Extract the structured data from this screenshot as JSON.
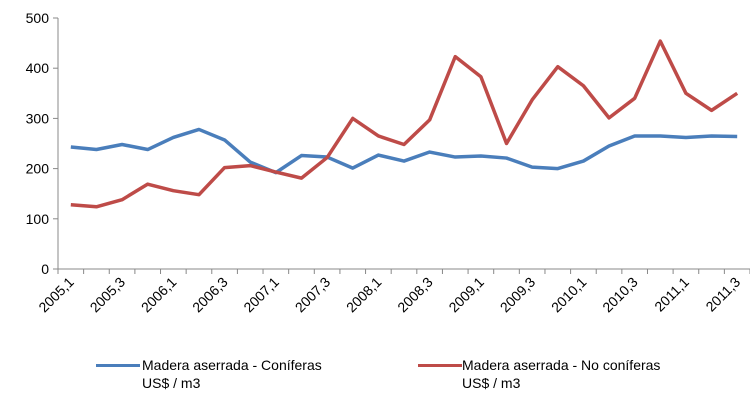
{
  "chart_data": {
    "type": "line",
    "categories": [
      "2005,1",
      null,
      "2005,3",
      null,
      "2006,1",
      null,
      "2006,3",
      null,
      "2007,1",
      null,
      "2007,3",
      null,
      "2008,1",
      null,
      "2008,3",
      null,
      "2009,1",
      null,
      "2009,3",
      null,
      "2010,1",
      null,
      "2010,3",
      null,
      "2011,1",
      null,
      "2011,3"
    ],
    "series": [
      {
        "name": "Madera aserrada - Coníferas\nUS$ / m3",
        "color": "#4a7ebb",
        "values": [
          243,
          238,
          248,
          238,
          262,
          278,
          257,
          213,
          192,
          226,
          223,
          201,
          227,
          215,
          233,
          223,
          225,
          221,
          203,
          200,
          215,
          245,
          265,
          265,
          262,
          265,
          264
        ]
      },
      {
        "name": "Madera aserrada -  No coníferas\nUS$ / m3",
        "color": "#be4b48",
        "values": [
          128,
          124,
          138,
          169,
          156,
          148,
          202,
          206,
          193,
          181,
          222,
          300,
          265,
          248,
          297,
          423,
          383,
          250,
          337,
          403,
          365,
          301,
          340,
          454,
          350,
          316,
          350
        ]
      }
    ],
    "ylim": [
      0,
      500
    ],
    "yticks": [
      0,
      100,
      200,
      300,
      400,
      500
    ],
    "grid": false,
    "legend": "bottom"
  }
}
